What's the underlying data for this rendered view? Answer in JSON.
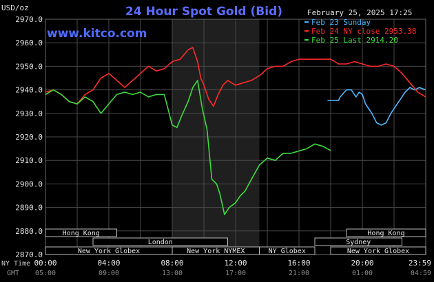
{
  "header": {
    "title": "24 Hour Spot Gold (Bid)",
    "site": "www.kitco.com",
    "timestamp": "February 25, 2025 17:25",
    "unit": "USD/oz"
  },
  "chart_data": {
    "type": "line",
    "title": "24 Hour Spot Gold (Bid)",
    "ylabel": "USD/oz",
    "ylim": [
      2870,
      2970
    ],
    "xlim": [
      0,
      24
    ],
    "y_ticks": [
      "2970.0",
      "2960.0",
      "2950.0",
      "2940.0",
      "2930.0",
      "2920.0",
      "2910.0",
      "2900.0",
      "2890.0",
      "2880.0",
      "2870.0"
    ],
    "x_tick_positions": [
      0,
      4,
      8,
      12,
      16,
      20,
      24
    ],
    "x_ticks_ny": [
      "00:00",
      "04:00",
      "08:00",
      "12:00",
      "16:00",
      "20:00",
      "23:59"
    ],
    "x_ticks_gmt": [
      "05:00",
      "09:00",
      "13:00",
      "17:00",
      "21:00",
      "01:00",
      "04:59"
    ],
    "x_axis_labels": {
      "ny": "NY Time",
      "gmt": "GMT"
    },
    "shaded_region": [
      8,
      13.5
    ],
    "grid": true,
    "legend_placement": "top-right",
    "series": [
      {
        "name": "Feb 23 Sunday",
        "color": "#4fb8ff",
        "x": [
          17.8,
          18.5,
          18.6,
          19.0,
          19.3,
          19.6,
          19.8,
          20.0,
          20.2,
          20.4,
          20.6,
          20.9,
          21.2,
          21.5,
          21.8,
          22.1,
          22.4,
          22.7,
          23.0,
          23.3,
          23.6,
          23.99
        ],
        "y": [
          2935.5,
          2935.5,
          2937,
          2940,
          2940,
          2937,
          2939,
          2938,
          2934,
          2932,
          2930,
          2926,
          2925,
          2926,
          2930,
          2933,
          2936,
          2939,
          2941,
          2940,
          2941,
          2940
        ]
      },
      {
        "name": "Feb 24 NY close 2953.38",
        "color": "#ff2a2a",
        "x": [
          0,
          0.5,
          1.0,
          1.5,
          2.0,
          2.5,
          3.0,
          3.5,
          4.0,
          4.5,
          5.0,
          5.5,
          6.0,
          6.5,
          7.0,
          7.5,
          8.0,
          8.5,
          9.0,
          9.3,
          9.6,
          9.8,
          10.0,
          10.3,
          10.6,
          10.9,
          11.2,
          11.5,
          12.0,
          12.5,
          13.0,
          13.5,
          14.0,
          14.5,
          15.0,
          15.5,
          16.0,
          16.5,
          17.0,
          17.5,
          18.0,
          18.5,
          19.0,
          19.5,
          20.0,
          20.5,
          21.0,
          21.5,
          22.0,
          22.5,
          23.0,
          23.5,
          23.99
        ],
        "y": [
          2939,
          2940,
          2938,
          2935,
          2934,
          2938,
          2940,
          2945,
          2947,
          2944,
          2941,
          2944,
          2947,
          2950,
          2948,
          2949,
          2952,
          2953,
          2957,
          2958,
          2952,
          2945,
          2942,
          2936,
          2933,
          2938,
          2942,
          2944,
          2942,
          2943,
          2944,
          2946,
          2949,
          2950,
          2950,
          2952,
          2953,
          2953,
          2953,
          2953,
          2953,
          2951,
          2951,
          2952,
          2951,
          2950,
          2950,
          2951,
          2950,
          2947,
          2943,
          2939,
          2937
        ]
      },
      {
        "name": "Feb 25 Last 2914.20",
        "color": "#3ddc3d",
        "x": [
          0,
          0.5,
          1.0,
          1.5,
          2.0,
          2.5,
          3.0,
          3.5,
          4.0,
          4.5,
          5.0,
          5.5,
          6.0,
          6.5,
          7.0,
          7.5,
          8.0,
          8.3,
          8.6,
          9.0,
          9.3,
          9.6,
          9.9,
          10.2,
          10.5,
          10.8,
          11.0,
          11.3,
          11.6,
          12.0,
          12.3,
          12.6,
          13.0,
          13.5,
          14.0,
          14.5,
          15.0,
          15.5,
          16.0,
          16.5,
          17.0,
          17.5,
          18.0
        ],
        "y": [
          2938,
          2940,
          2938,
          2935,
          2934,
          2937,
          2935,
          2930,
          2934,
          2938,
          2939,
          2938,
          2939,
          2937,
          2938,
          2938,
          2925,
          2924,
          2929,
          2935,
          2941,
          2944,
          2932,
          2923,
          2902,
          2900,
          2896,
          2887,
          2890,
          2892,
          2895,
          2897,
          2902,
          2908,
          2911,
          2910,
          2913,
          2913,
          2914,
          2915,
          2917,
          2916,
          2914.2
        ]
      }
    ],
    "sessions": [
      {
        "label": "Hong Kong",
        "start": 0,
        "end": 4.5,
        "row": 0
      },
      {
        "label": "London",
        "start": 3,
        "end": 11.5,
        "row": 1
      },
      {
        "label": "New York Globex",
        "start": 0,
        "end": 8,
        "row": 2
      },
      {
        "label": "New York NYMEX",
        "start": 8,
        "end": 13.5,
        "row": 2
      },
      {
        "label": "NY Globex",
        "start": 13.5,
        "end": 17,
        "row": 2
      },
      {
        "label": "Hong Kong",
        "start": 19,
        "end": 24,
        "row": 0
      },
      {
        "label": "Sydney",
        "start": 17,
        "end": 22.5,
        "row": 1
      },
      {
        "label": "New York Globex",
        "start": 18,
        "end": 24,
        "row": 2
      }
    ]
  }
}
